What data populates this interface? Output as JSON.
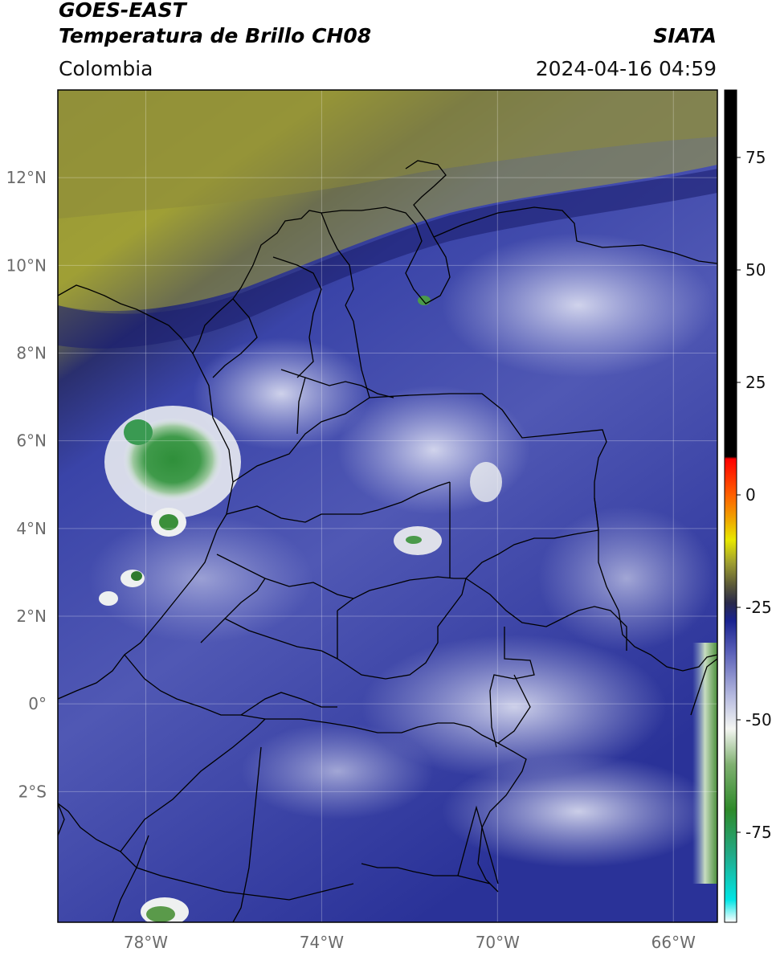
{
  "header": {
    "title_line1": "GOES-EAST",
    "title_line2": "Temperatura de Brillo CH08",
    "agency": "SIATA",
    "region": "Colombia",
    "datetime": "2024-04-16 04:59"
  },
  "map": {
    "lat_range": [
      -4.98,
      14.0
    ],
    "lon_range": [
      -80.0,
      -65.0
    ],
    "lat_ticks": [
      {
        "value": 12,
        "label": "12°N"
      },
      {
        "value": 10,
        "label": "10°N"
      },
      {
        "value": 8,
        "label": "8°N"
      },
      {
        "value": 6,
        "label": "6°N"
      },
      {
        "value": 4,
        "label": "4°N"
      },
      {
        "value": 2,
        "label": "2°N"
      },
      {
        "value": 0,
        "label": "0°"
      },
      {
        "value": -2,
        "label": "2°S"
      }
    ],
    "lon_ticks": [
      {
        "value": -78,
        "label": "78°W"
      },
      {
        "value": -74,
        "label": "74°W"
      },
      {
        "value": -70,
        "label": "70°W"
      },
      {
        "value": -66,
        "label": "66°W"
      }
    ],
    "gridlines": true,
    "field": "brightness temperature (°C)"
  },
  "colorbar": {
    "range": [
      -95,
      90
    ],
    "ticks": [
      {
        "value": 75,
        "label": "75"
      },
      {
        "value": 50,
        "label": "50"
      },
      {
        "value": 25,
        "label": "25"
      },
      {
        "value": 0,
        "label": "0"
      },
      {
        "value": -25,
        "label": "-25"
      },
      {
        "value": -50,
        "label": "-50"
      },
      {
        "value": -75,
        "label": "-75"
      }
    ],
    "stops": [
      {
        "value": -95,
        "color": "#ffffff"
      },
      {
        "value": -90,
        "color": "#00e5e5"
      },
      {
        "value": -80,
        "color": "#22aa88"
      },
      {
        "value": -70,
        "color": "#2e8a2a"
      },
      {
        "value": -60,
        "color": "#7fb070"
      },
      {
        "value": -52,
        "color": "#f4f6f2"
      },
      {
        "value": -45,
        "color": "#b8bce0"
      },
      {
        "value": -35,
        "color": "#5a60b8"
      },
      {
        "value": -28,
        "color": "#1a2390"
      },
      {
        "value": -24,
        "color": "#2a2a4a"
      },
      {
        "value": -20,
        "color": "#5c5a38"
      },
      {
        "value": -15,
        "color": "#a0a030"
      },
      {
        "value": -10,
        "color": "#e8e800"
      },
      {
        "value": -5,
        "color": "#f0a000"
      },
      {
        "value": 0,
        "color": "#ff6000"
      },
      {
        "value": 8,
        "color": "#ff0000"
      },
      {
        "value": 8.5,
        "color": "#000000"
      },
      {
        "value": 90,
        "color": "#000000"
      }
    ]
  }
}
